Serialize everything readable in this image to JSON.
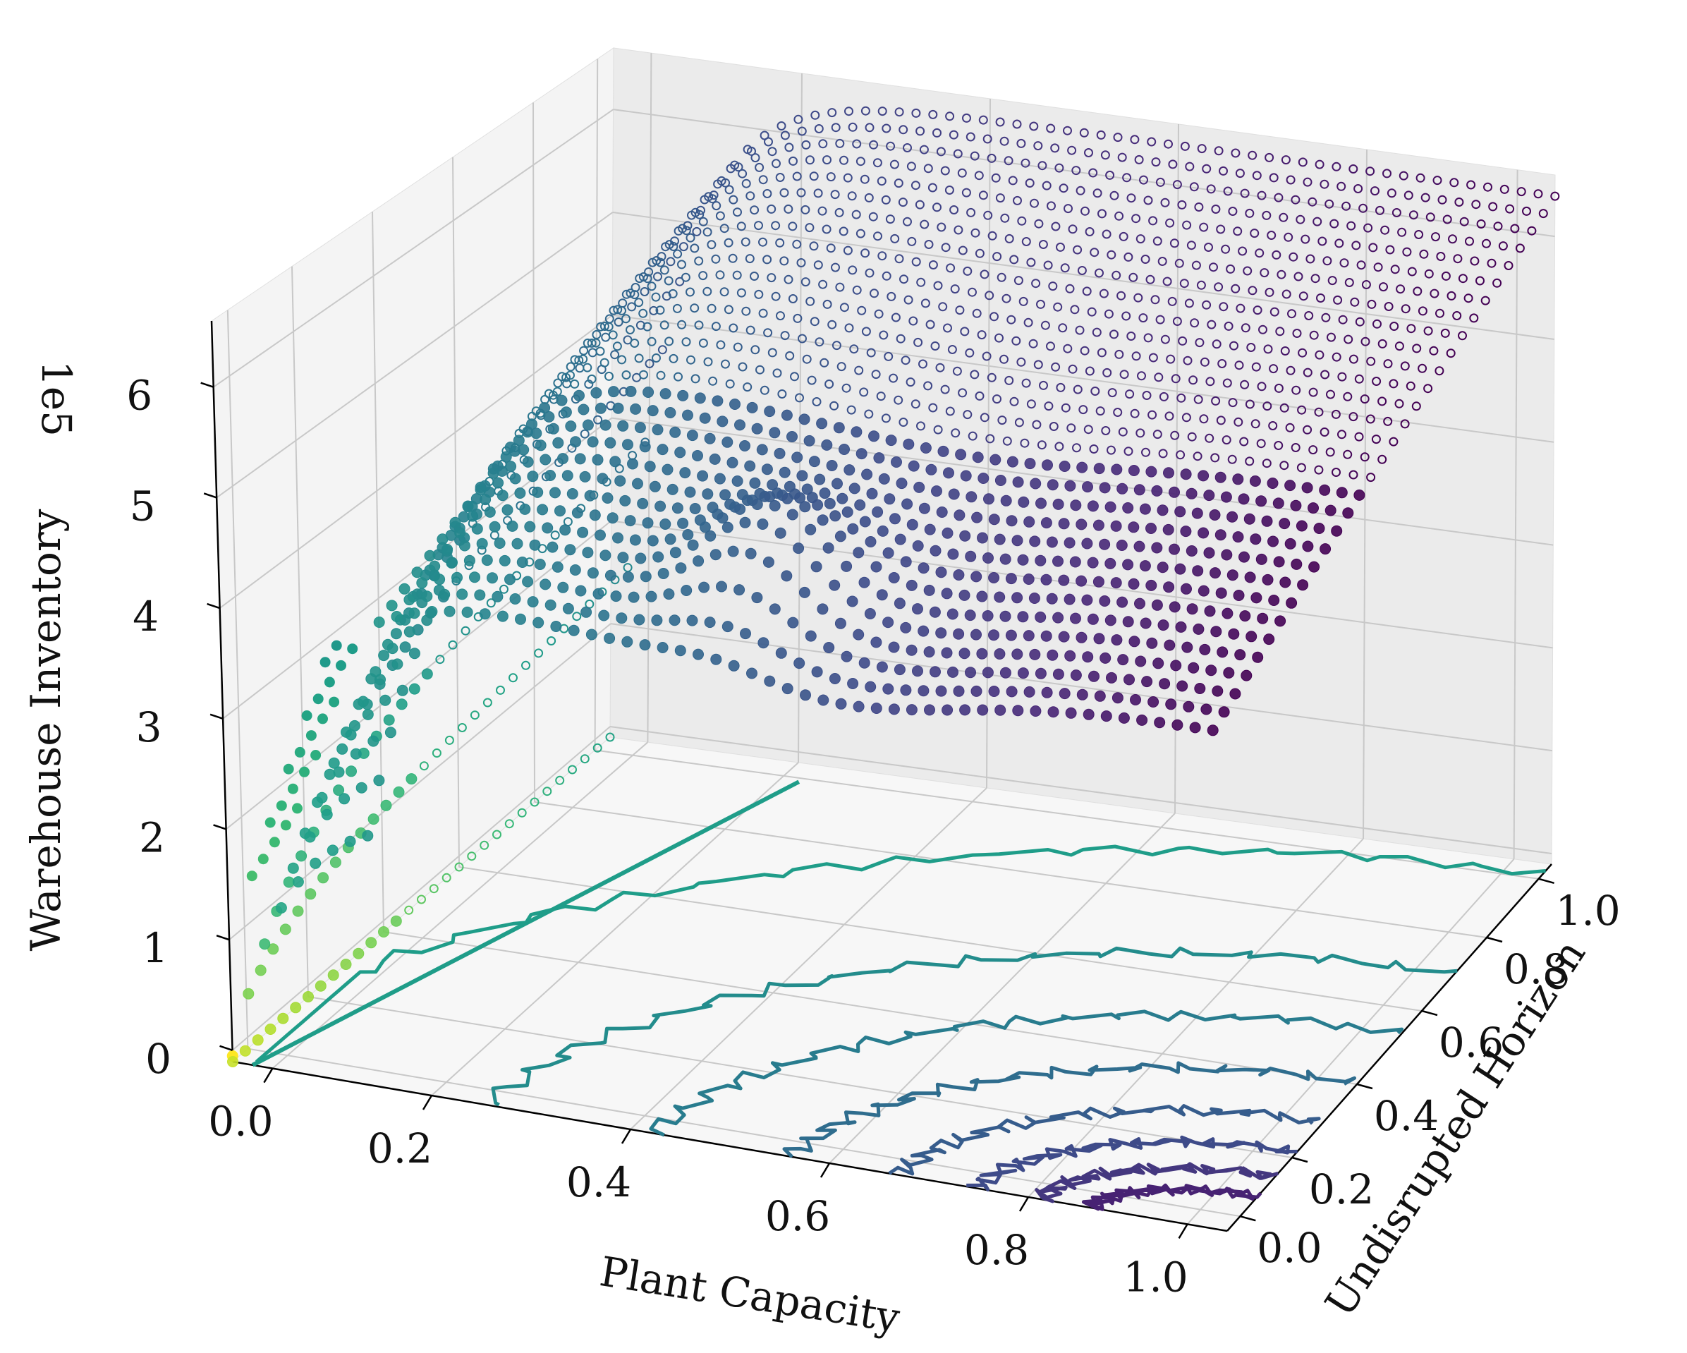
{
  "chart_data": {
    "type": "scatter",
    "projection": "3d",
    "title": "",
    "xlabel": "Plant Capacity",
    "ylabel": "Undisrupted Horizon",
    "zlabel": "Warehouse Inventory",
    "z_multiplier_label": "1e5",
    "xlim": [
      0,
      1
    ],
    "ylim": [
      0,
      1
    ],
    "zlim": [
      0,
      6.5
    ],
    "x_ticks": [
      "0.0",
      "0.2",
      "0.4",
      "0.6",
      "0.8",
      "1.0"
    ],
    "y_ticks": [
      "0.0",
      "0.2",
      "0.4",
      "0.6",
      "0.8",
      "1.0"
    ],
    "z_ticks": [
      "0",
      "1",
      "2",
      "3",
      "4",
      "5",
      "6"
    ],
    "grid": true,
    "legend": "none",
    "colormap": "viridis",
    "surface_description": "Warehouse inventory (×1e5) over plant capacity and undisrupted horizon; near 0 at capacity 0, rising to about 6.3 at high capacity and high horizon, with a ridge around 5.2 near capacity 0.5, horizon 0.15",
    "surface_samples": [
      {
        "x": 0.0,
        "y": 0.0,
        "z": 0.0
      },
      {
        "x": 0.02,
        "y": 0.02,
        "z": 1.6
      },
      {
        "x": 0.03,
        "y": 0.1,
        "z": 3.0
      },
      {
        "x": 0.1,
        "y": 0.0,
        "z": 3.5
      },
      {
        "x": 0.2,
        "y": 0.1,
        "z": 4.2
      },
      {
        "x": 0.5,
        "y": 0.15,
        "z": 5.2
      },
      {
        "x": 0.6,
        "y": 0.0,
        "z": 4.6
      },
      {
        "x": 1.0,
        "y": 0.0,
        "z": 4.4
      },
      {
        "x": 1.0,
        "y": 0.6,
        "z": 5.6
      },
      {
        "x": 1.0,
        "y": 1.0,
        "z": 6.3
      },
      {
        "x": 0.0,
        "y": 1.0,
        "z": 6.3
      },
      {
        "x": 0.0,
        "y": 0.6,
        "z": 5.6
      }
    ],
    "contour_projection": "filled-free line contours projected on the z=0 floor"
  },
  "colors": {
    "background": "#ffffff",
    "pane": "#f2f2f2",
    "grid": "#c8c8c8",
    "axis": "#000000",
    "viridis_low": "#440154",
    "viridis_mid": "#21918c",
    "viridis_high": "#fde725"
  }
}
